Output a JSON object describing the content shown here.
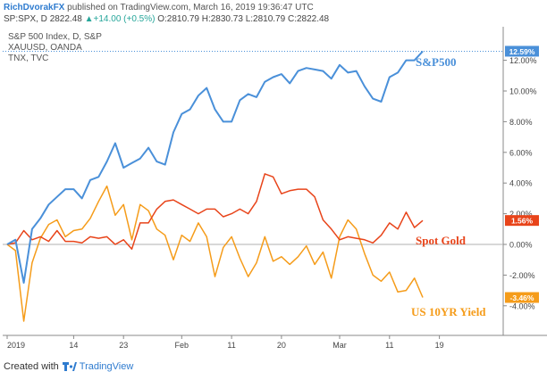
{
  "header": {
    "author": "RichDvorakFX",
    "published_text": "published on TradingView.com, March 16, 2019 19:36:47 UTC",
    "symbol_line": {
      "symbol": "SP:SPX, D",
      "last": "2822.48",
      "change_icon": "up-triangle-icon",
      "change": "+14.00 (+0.5%)",
      "open": "O:2810.79",
      "high": "H:2830.73",
      "low": "L:2810.79",
      "close": "C:2822.48"
    }
  },
  "legend": {
    "series1": "S&P 500 Index, D, S&P",
    "series2": "XAUUSD, OANDA",
    "series3": "TNX, TVC"
  },
  "footer": {
    "created_with": "Created with",
    "brand": "TradingView",
    "icon": "tradingview-logo-icon"
  },
  "chart_data": {
    "type": "line",
    "x": [
      "Jan 2",
      "Jan 3",
      "Jan 4",
      "Jan 7",
      "Jan 8",
      "Jan 9",
      "Jan 10",
      "Jan 11",
      "Jan 14",
      "Jan 15",
      "Jan 16",
      "Jan 17",
      "Jan 18",
      "Jan 22",
      "Jan 23",
      "Jan 24",
      "Jan 25",
      "Jan 28",
      "Jan 29",
      "Jan 30",
      "Jan 31",
      "Feb 1",
      "Feb 4",
      "Feb 5",
      "Feb 6",
      "Feb 7",
      "Feb 8",
      "Feb 11",
      "Feb 12",
      "Feb 13",
      "Feb 14",
      "Feb 15",
      "Feb 19",
      "Feb 20",
      "Feb 21",
      "Feb 22",
      "Feb 25",
      "Feb 26",
      "Feb 27",
      "Feb 28",
      "Mar 1",
      "Mar 4",
      "Mar 5",
      "Mar 6",
      "Mar 7",
      "Mar 8",
      "Mar 11",
      "Mar 12",
      "Mar 13",
      "Mar 14",
      "Mar 15"
    ],
    "x_tick_labels": [
      {
        "label": "2019",
        "x": "Jan 2"
      },
      {
        "label": "14",
        "x": "Jan 14"
      },
      {
        "label": "23",
        "x": "Jan 23"
      },
      {
        "label": "Feb",
        "x": "Feb 1"
      },
      {
        "label": "11",
        "x": "Feb 11"
      },
      {
        "label": "20",
        "x": "Feb 20"
      },
      {
        "label": "Mar",
        "x": "Mar 1"
      },
      {
        "label": "11",
        "x": "Mar 11"
      },
      {
        "label": "19",
        "x": "Mar 19"
      }
    ],
    "y_ticks": [
      -4,
      -2,
      0,
      2,
      4,
      6,
      8,
      10,
      12
    ],
    "y_tick_format": "%",
    "ylim": [
      -5.5,
      13.5
    ],
    "grid": false,
    "legend_position": "top-left",
    "series": [
      {
        "name": "S&P500",
        "color": "#4a90d9",
        "last_label": "12.59%",
        "values": [
          0.0,
          0.3,
          -2.5,
          1.0,
          1.7,
          2.6,
          3.1,
          3.6,
          3.6,
          3.0,
          4.2,
          4.4,
          5.4,
          6.6,
          5.0,
          5.3,
          5.6,
          6.3,
          5.4,
          5.2,
          7.3,
          8.5,
          8.8,
          9.7,
          10.2,
          8.8,
          8.0,
          8.0,
          9.4,
          9.8,
          9.6,
          10.6,
          10.9,
          11.1,
          10.5,
          11.3,
          11.5,
          11.4,
          11.3,
          10.8,
          11.7,
          11.2,
          11.3,
          10.3,
          9.5,
          9.3,
          10.9,
          11.2,
          12.0,
          12.0,
          12.59
        ]
      },
      {
        "name": "Spot Gold",
        "color": "#e8441a",
        "last_label": "1.56%",
        "values": [
          0.0,
          0.1,
          0.9,
          0.3,
          0.5,
          0.2,
          0.9,
          0.2,
          0.2,
          0.1,
          0.5,
          0.4,
          0.5,
          0.0,
          0.3,
          -0.3,
          1.4,
          1.4,
          2.3,
          2.8,
          2.9,
          2.6,
          2.3,
          2.0,
          2.3,
          2.3,
          1.8,
          2.0,
          2.3,
          2.0,
          2.8,
          4.6,
          4.4,
          3.3,
          3.5,
          3.6,
          3.6,
          3.1,
          1.6,
          1.0,
          0.3,
          0.5,
          0.4,
          0.3,
          0.1,
          0.6,
          1.4,
          1.0,
          2.1,
          1.1,
          1.56
        ]
      },
      {
        "name": "US 10YR Yield",
        "color": "#f59c1a",
        "last_label": "-3.46%",
        "values": [
          0.0,
          -0.4,
          -5.0,
          -1.2,
          0.4,
          1.3,
          1.6,
          0.5,
          0.9,
          1.0,
          1.7,
          2.8,
          3.8,
          1.9,
          2.6,
          0.3,
          2.6,
          2.2,
          1.0,
          0.6,
          -1.0,
          0.6,
          0.2,
          1.4,
          0.5,
          -2.1,
          -0.2,
          0.5,
          -0.9,
          -2.1,
          -1.2,
          0.5,
          -1.1,
          -0.8,
          -1.3,
          -0.8,
          -0.1,
          -1.3,
          -0.5,
          -2.2,
          0.5,
          1.6,
          1.0,
          -0.6,
          -2.0,
          -2.4,
          -1.8,
          -3.1,
          -3.0,
          -2.2,
          -3.46
        ]
      }
    ],
    "annotations": [
      {
        "text": "S&P500",
        "series": 0
      },
      {
        "text": "Spot Gold",
        "series": 1
      },
      {
        "text": "US 10YR Yield",
        "series": 2
      }
    ]
  }
}
